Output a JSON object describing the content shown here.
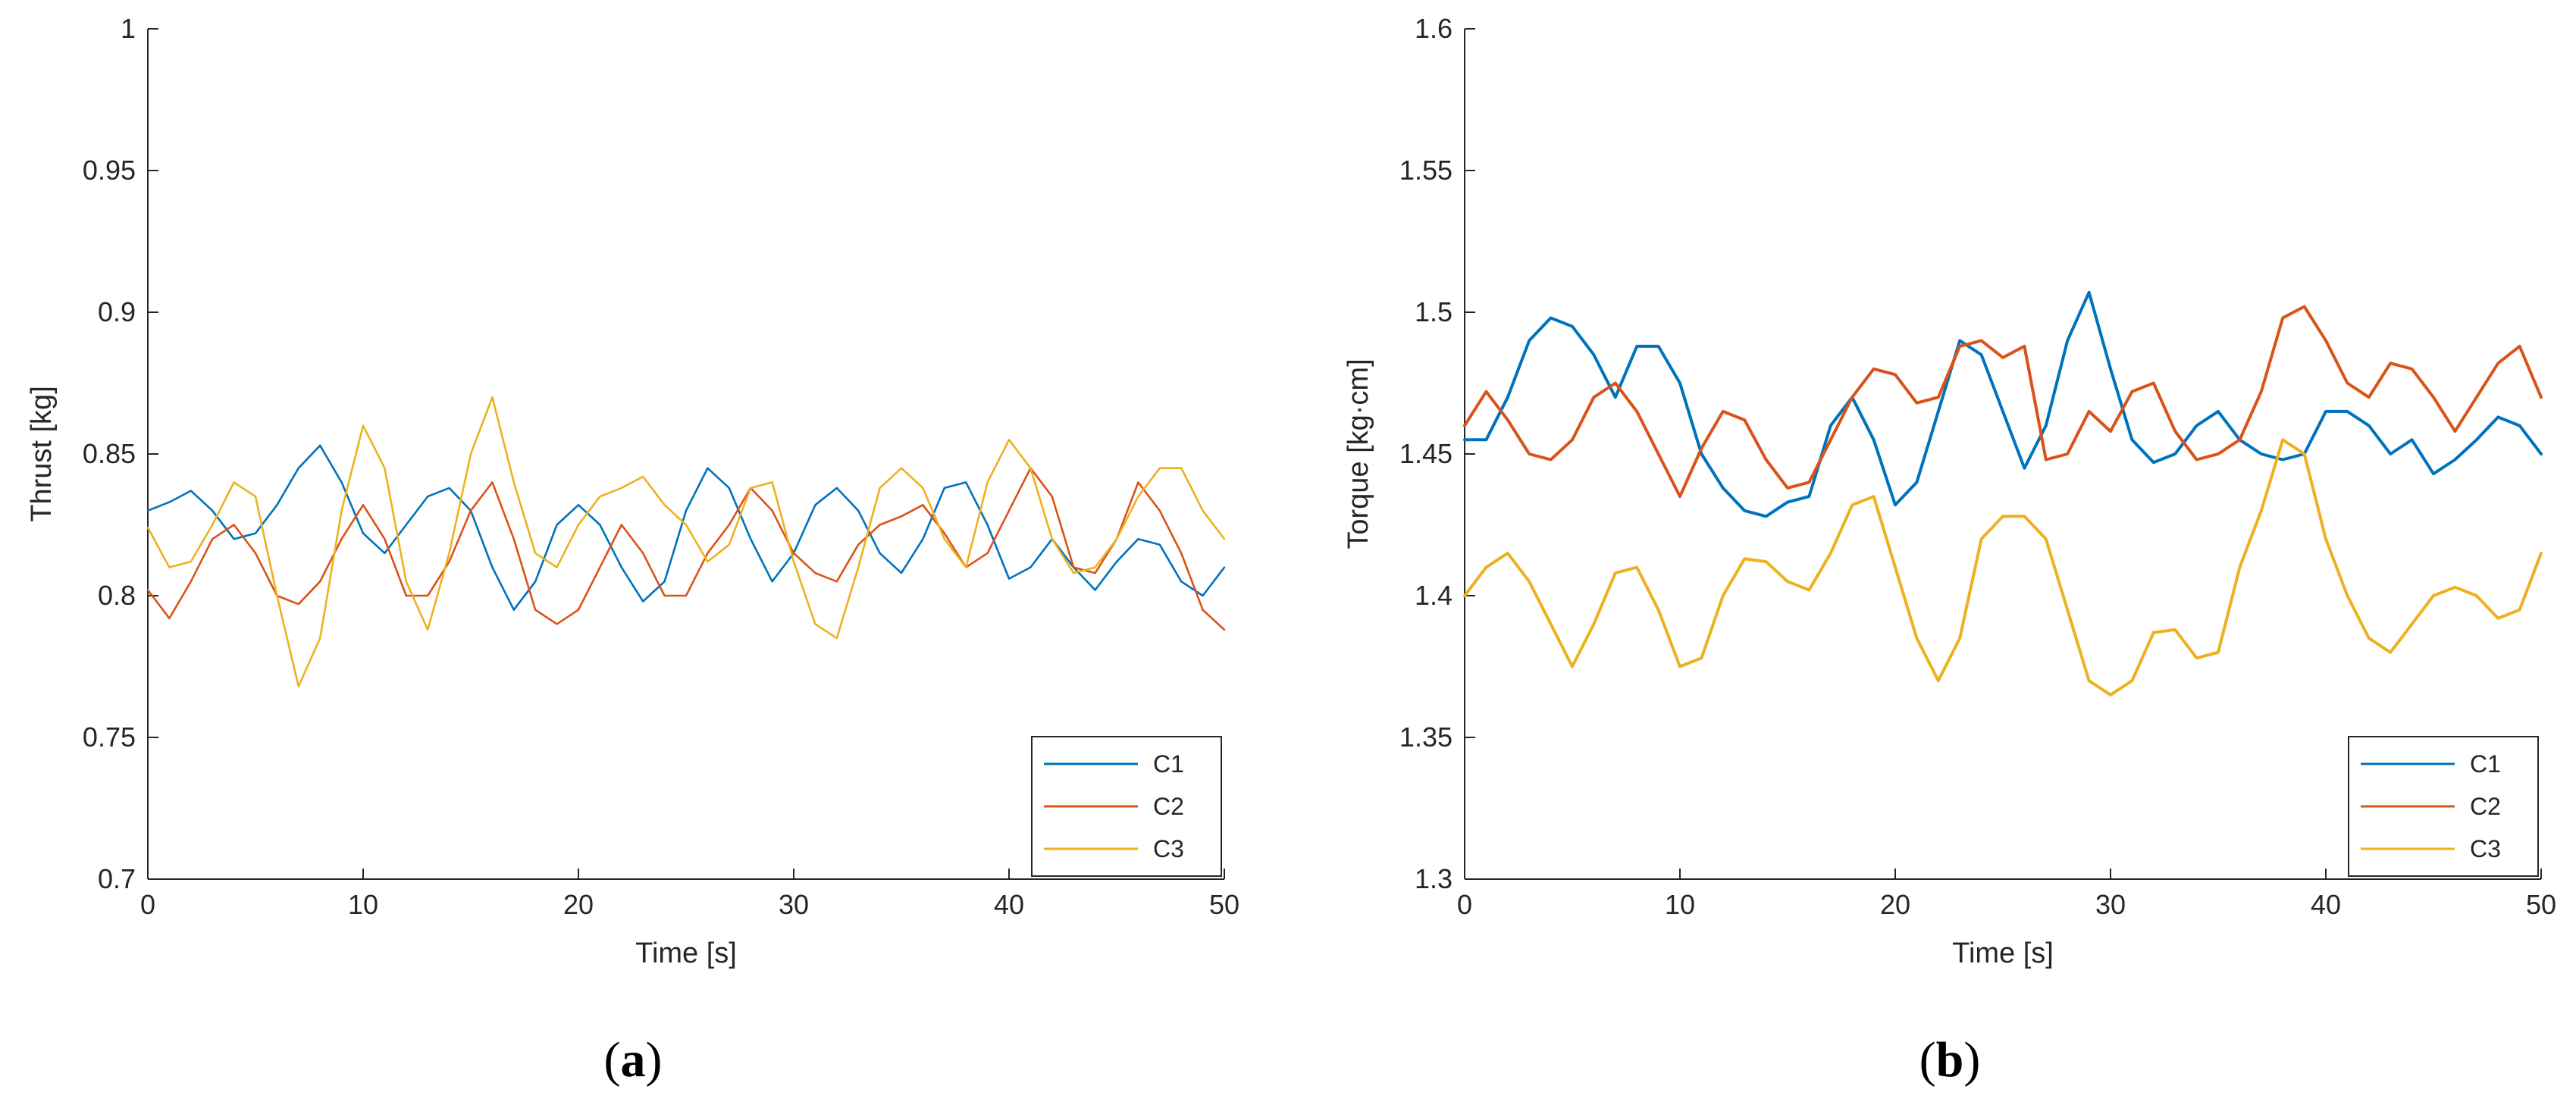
{
  "colors": {
    "C1": "#0072BD",
    "C2": "#D95319",
    "C3": "#EDB120",
    "axis": "#262626"
  },
  "chart_data": [
    {
      "type": "line",
      "caption": {
        "open": "(",
        "letter": "a",
        "close": ")"
      },
      "xlabel": "Time [s]",
      "ylabel": "Thrust [kg]",
      "xlim": [
        0,
        50
      ],
      "ylim": [
        0.7,
        1
      ],
      "xticks": [
        "0",
        "10",
        "20",
        "30",
        "40",
        "50"
      ],
      "yticks": [
        "0.7",
        "0.75",
        "0.8",
        "0.85",
        "0.9",
        "0.95",
        "1"
      ],
      "grid": false,
      "legend": {
        "position": "bottom-right",
        "entries": [
          "C1",
          "C2",
          "C3"
        ]
      },
      "series": [
        {
          "name": "C1",
          "x": [
            0,
            1,
            2,
            3,
            4,
            5,
            6,
            7,
            8,
            9,
            10,
            11,
            12,
            13,
            14,
            15,
            16,
            17,
            18,
            19,
            20,
            21,
            22,
            23,
            24,
            25,
            26,
            27,
            28,
            29,
            30,
            31,
            32,
            33,
            34,
            35,
            36,
            37,
            38,
            39,
            40,
            41,
            42,
            43,
            44,
            45,
            46,
            47,
            48,
            49,
            50
          ],
          "y": [
            0.83,
            0.833,
            0.837,
            0.83,
            0.82,
            0.822,
            0.832,
            0.845,
            0.853,
            0.84,
            0.822,
            0.815,
            0.825,
            0.835,
            0.838,
            0.83,
            0.81,
            0.795,
            0.805,
            0.825,
            0.832,
            0.825,
            0.81,
            0.798,
            0.805,
            0.83,
            0.845,
            0.838,
            0.82,
            0.805,
            0.815,
            0.832,
            0.838,
            0.83,
            0.815,
            0.808,
            0.82,
            0.838,
            0.84,
            0.825,
            0.806,
            0.81,
            0.82,
            0.81,
            0.802,
            0.812,
            0.82,
            0.818,
            0.805,
            0.8,
            0.81
          ]
        },
        {
          "name": "C2",
          "x": [
            0,
            1,
            2,
            3,
            4,
            5,
            6,
            7,
            8,
            9,
            10,
            11,
            12,
            13,
            14,
            15,
            16,
            17,
            18,
            19,
            20,
            21,
            22,
            23,
            24,
            25,
            26,
            27,
            28,
            29,
            30,
            31,
            32,
            33,
            34,
            35,
            36,
            37,
            38,
            39,
            40,
            41,
            42,
            43,
            44,
            45,
            46,
            47,
            48,
            49,
            50
          ],
          "y": [
            0.802,
            0.792,
            0.805,
            0.82,
            0.825,
            0.815,
            0.8,
            0.797,
            0.805,
            0.82,
            0.832,
            0.82,
            0.8,
            0.8,
            0.812,
            0.83,
            0.84,
            0.82,
            0.795,
            0.79,
            0.795,
            0.81,
            0.825,
            0.815,
            0.8,
            0.8,
            0.815,
            0.825,
            0.838,
            0.83,
            0.815,
            0.808,
            0.805,
            0.818,
            0.825,
            0.828,
            0.832,
            0.822,
            0.81,
            0.815,
            0.83,
            0.845,
            0.835,
            0.81,
            0.808,
            0.82,
            0.84,
            0.83,
            0.815,
            0.795,
            0.788
          ]
        },
        {
          "name": "C3",
          "x": [
            0,
            1,
            2,
            3,
            4,
            5,
            6,
            7,
            8,
            9,
            10,
            11,
            12,
            13,
            14,
            15,
            16,
            17,
            18,
            19,
            20,
            21,
            22,
            23,
            24,
            25,
            26,
            27,
            28,
            29,
            30,
            31,
            32,
            33,
            34,
            35,
            36,
            37,
            38,
            39,
            40,
            41,
            42,
            43,
            44,
            45,
            46,
            47,
            48,
            49,
            50
          ],
          "y": [
            0.824,
            0.81,
            0.812,
            0.825,
            0.84,
            0.835,
            0.8,
            0.768,
            0.785,
            0.83,
            0.86,
            0.845,
            0.805,
            0.788,
            0.815,
            0.85,
            0.87,
            0.84,
            0.815,
            0.81,
            0.825,
            0.835,
            0.838,
            0.842,
            0.832,
            0.825,
            0.812,
            0.818,
            0.838,
            0.84,
            0.812,
            0.79,
            0.785,
            0.81,
            0.838,
            0.845,
            0.838,
            0.82,
            0.81,
            0.84,
            0.855,
            0.845,
            0.82,
            0.808,
            0.81,
            0.82,
            0.835,
            0.845,
            0.845,
            0.83,
            0.82
          ]
        }
      ]
    },
    {
      "type": "line",
      "caption": {
        "open": "(",
        "letter": "b",
        "close": ")"
      },
      "xlabel": "Time [s]",
      "ylabel": "Torque [kg·cm]",
      "xlim": [
        0,
        50
      ],
      "ylim": [
        1.3,
        1.6
      ],
      "xticks": [
        "0",
        "10",
        "20",
        "30",
        "40",
        "50"
      ],
      "yticks": [
        "1.3",
        "1.35",
        "1.4",
        "1.45",
        "1.5",
        "1.55",
        "1.6"
      ],
      "grid": false,
      "legend": {
        "position": "bottom-right",
        "entries": [
          "C1",
          "C2",
          "C3"
        ]
      },
      "series": [
        {
          "name": "C1",
          "x": [
            0,
            1,
            2,
            3,
            4,
            5,
            6,
            7,
            8,
            9,
            10,
            11,
            12,
            13,
            14,
            15,
            16,
            17,
            18,
            19,
            20,
            21,
            22,
            23,
            24,
            25,
            26,
            27,
            28,
            29,
            30,
            31,
            32,
            33,
            34,
            35,
            36,
            37,
            38,
            39,
            40,
            41,
            42,
            43,
            44,
            45,
            46,
            47,
            48,
            49,
            50
          ],
          "y": [
            1.455,
            1.455,
            1.47,
            1.49,
            1.498,
            1.495,
            1.485,
            1.47,
            1.488,
            1.488,
            1.475,
            1.45,
            1.438,
            1.43,
            1.428,
            1.433,
            1.435,
            1.46,
            1.47,
            1.455,
            1.432,
            1.44,
            1.465,
            1.49,
            1.485,
            1.465,
            1.445,
            1.46,
            1.49,
            1.507,
            1.48,
            1.455,
            1.447,
            1.45,
            1.46,
            1.465,
            1.455,
            1.45,
            1.448,
            1.45,
            1.465,
            1.465,
            1.46,
            1.45,
            1.455,
            1.443,
            1.448,
            1.455,
            1.463,
            1.46,
            1.45
          ]
        },
        {
          "name": "C2",
          "x": [
            0,
            1,
            2,
            3,
            4,
            5,
            6,
            7,
            8,
            9,
            10,
            11,
            12,
            13,
            14,
            15,
            16,
            17,
            18,
            19,
            20,
            21,
            22,
            23,
            24,
            25,
            26,
            27,
            28,
            29,
            30,
            31,
            32,
            33,
            34,
            35,
            36,
            37,
            38,
            39,
            40,
            41,
            42,
            43,
            44,
            45,
            46,
            47,
            48,
            49,
            50
          ],
          "y": [
            1.46,
            1.472,
            1.462,
            1.45,
            1.448,
            1.455,
            1.47,
            1.475,
            1.465,
            1.45,
            1.435,
            1.452,
            1.465,
            1.462,
            1.448,
            1.438,
            1.44,
            1.455,
            1.47,
            1.48,
            1.478,
            1.468,
            1.47,
            1.488,
            1.49,
            1.484,
            1.488,
            1.448,
            1.45,
            1.465,
            1.458,
            1.472,
            1.475,
            1.458,
            1.448,
            1.45,
            1.455,
            1.472,
            1.498,
            1.502,
            1.49,
            1.475,
            1.47,
            1.482,
            1.48,
            1.47,
            1.458,
            1.47,
            1.482,
            1.488,
            1.47
          ]
        },
        {
          "name": "C3",
          "x": [
            0,
            1,
            2,
            3,
            4,
            5,
            6,
            7,
            8,
            9,
            10,
            11,
            12,
            13,
            14,
            15,
            16,
            17,
            18,
            19,
            20,
            21,
            22,
            23,
            24,
            25,
            26,
            27,
            28,
            29,
            30,
            31,
            32,
            33,
            34,
            35,
            36,
            37,
            38,
            39,
            40,
            41,
            42,
            43,
            44,
            45,
            46,
            47,
            48,
            49,
            50
          ],
          "y": [
            1.4,
            1.41,
            1.415,
            1.405,
            1.39,
            1.375,
            1.39,
            1.408,
            1.41,
            1.395,
            1.375,
            1.378,
            1.4,
            1.413,
            1.412,
            1.405,
            1.402,
            1.415,
            1.432,
            1.435,
            1.41,
            1.385,
            1.37,
            1.385,
            1.42,
            1.428,
            1.428,
            1.42,
            1.395,
            1.37,
            1.365,
            1.37,
            1.387,
            1.388,
            1.378,
            1.38,
            1.41,
            1.43,
            1.455,
            1.45,
            1.42,
            1.4,
            1.385,
            1.38,
            1.39,
            1.4,
            1.403,
            1.4,
            1.392,
            1.395,
            1.415
          ]
        }
      ]
    }
  ]
}
